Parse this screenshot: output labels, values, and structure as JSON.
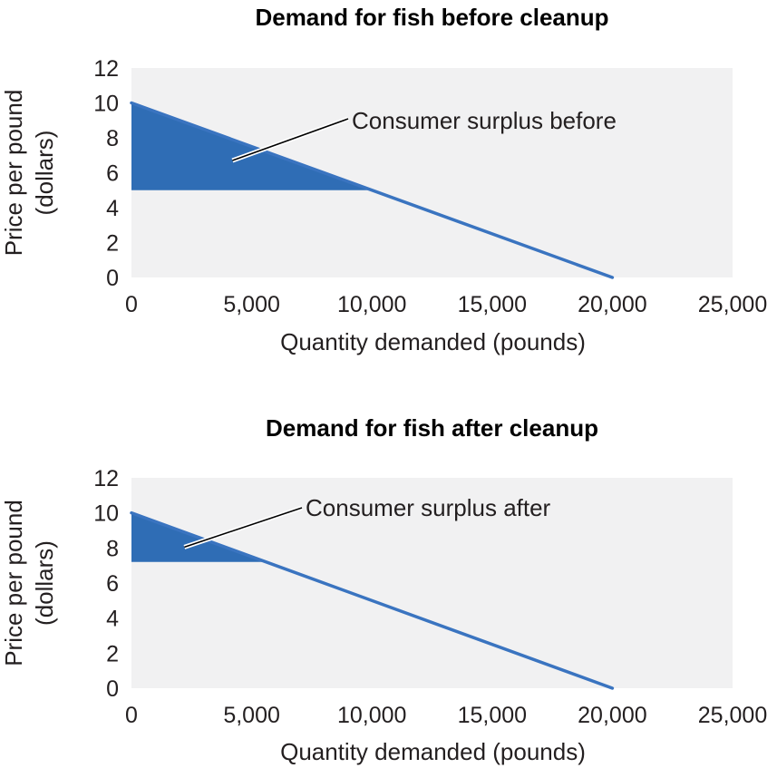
{
  "colors": {
    "surplus_fill": "#2f6db5",
    "demand_line": "#3a74c0",
    "plot_background": "#f1f1f2",
    "leader_line": "#000000"
  },
  "chart_data": [
    {
      "type": "line",
      "title": "Demand for fish before cleanup",
      "xlabel": "Quantity demanded (pounds)",
      "ylabel_lines": [
        "Price per pound",
        "(dollars)"
      ],
      "xlim": [
        0,
        25000
      ],
      "ylim": [
        0,
        12
      ],
      "x_ticks": [
        0,
        5000,
        10000,
        15000,
        20000,
        25000
      ],
      "x_tick_labels": [
        "0",
        "5,000",
        "10,000",
        "15,000",
        "20,000",
        "25,000"
      ],
      "y_ticks": [
        0,
        2,
        4,
        6,
        8,
        10,
        12
      ],
      "y_tick_labels": [
        "0",
        "2",
        "4",
        "6",
        "8",
        "10",
        "12"
      ],
      "grid": false,
      "series": [
        {
          "x": [
            0,
            20000
          ],
          "y": [
            10,
            0
          ]
        }
      ],
      "shaded_region": {
        "polygon": [
          [
            0,
            10
          ],
          [
            10000,
            5
          ],
          [
            0,
            5
          ]
        ]
      },
      "annotation": {
        "text": "Consumer surplus before",
        "point": [
          4200,
          6.7
        ]
      }
    },
    {
      "type": "line",
      "title": "Demand for fish after cleanup",
      "xlabel": "Quantity demanded (pounds)",
      "ylabel_lines": [
        "Price per pound",
        "(dollars)"
      ],
      "xlim": [
        0,
        25000
      ],
      "ylim": [
        0,
        12
      ],
      "x_ticks": [
        0,
        5000,
        10000,
        15000,
        20000,
        25000
      ],
      "x_tick_labels": [
        "0",
        "5,000",
        "10,000",
        "15,000",
        "20,000",
        "25,000"
      ],
      "y_ticks": [
        0,
        2,
        4,
        6,
        8,
        10,
        12
      ],
      "y_tick_labels": [
        "0",
        "2",
        "4",
        "6",
        "8",
        "10",
        "12"
      ],
      "grid": false,
      "series": [
        {
          "x": [
            0,
            20000
          ],
          "y": [
            10,
            0
          ]
        }
      ],
      "shaded_region": {
        "polygon": [
          [
            0,
            10
          ],
          [
            5600,
            7.2
          ],
          [
            0,
            7.2
          ]
        ]
      },
      "annotation": {
        "text": "Consumer surplus after",
        "point": [
          2200,
          8.05
        ]
      }
    }
  ]
}
